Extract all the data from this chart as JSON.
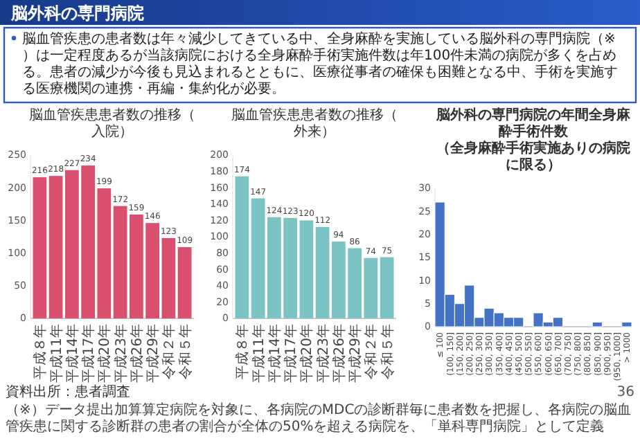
{
  "chart_data": [
    {
      "type": "other",
      "title": "脳外科の専門病院",
      "annotations": [
        "脳血管疾患の患者数は年々減少してきている中、全身麻酔を実施している脳外科の専門病院（※）は一定程度あるが当該病院における全身麻酔手術実施件数は年100件未満の病院が多くを占める。患者の減少が今後も見込まれるとともに、医療従事者の確保も困難となる中、手術を実施する医療機関の連携・再編・集約化が必要。",
        "資料出所：患者調査",
        "（※）データ提出加算算定病院を対象に、各病院のMDCの診断群毎に患者数を把握し、各病院の脳血管疾患に関する診断群の患者の割合が全体の50%を超える病院を、「単科専門病院」として定義",
        "36"
      ]
    },
    {
      "type": "bar",
      "title": "脳血管疾患患者数の推移（入院）",
      "categories": [
        "平成８年",
        "平成11年",
        "平成14年",
        "平成17年",
        "平成20年",
        "平成23年",
        "平成26年",
        "平成29年",
        "令和２年",
        "令和５年"
      ],
      "values": [
        216,
        218,
        227,
        234,
        199,
        172,
        159,
        146,
        123,
        109
      ],
      "color": "#d94f6e",
      "ylim": [
        0,
        250
      ],
      "yticks": [
        0,
        50,
        100,
        150,
        200,
        250
      ],
      "data_labels": true
    },
    {
      "type": "bar",
      "title": "脳血管疾患患者数の推移（外来）",
      "categories": [
        "平成８年",
        "平成11年",
        "平成14年",
        "平成17年",
        "平成20年",
        "平成23年",
        "平成26年",
        "平成29年",
        "令和２年",
        "令和５年"
      ],
      "values": [
        174,
        147,
        124,
        123,
        120,
        112,
        94,
        86,
        74,
        75
      ],
      "color": "#7cc4c4",
      "ylim": [
        0,
        200
      ],
      "yticks": [
        0,
        20,
        40,
        60,
        80,
        100,
        120,
        140,
        160,
        180,
        200
      ],
      "data_labels": true
    },
    {
      "type": "bar",
      "title": "脳外科の専門病院の年間全身麻酔手術件数",
      "subtitle": "（全身麻酔手術実施ありの病院に限る）",
      "categories": [
        "≤ 100",
        "(100, 150]",
        "(150, 200]",
        "(200, 250]",
        "(250, 300]",
        "(300, 350]",
        "(350, 400]",
        "(400, 450]",
        "(450, 500]",
        "(500, 550]",
        "(550, 600]",
        "(600, 650]",
        "(650, 700]",
        "(700, 750]",
        "(750, 800]",
        "(800, 850]",
        "(850, 900]",
        "(900, 950]",
        "(950, 1000]",
        "> 1000"
      ],
      "values": [
        27,
        7,
        5,
        9,
        2,
        4,
        3,
        2,
        2,
        0,
        3,
        1,
        2,
        0,
        0,
        0,
        1,
        0,
        0,
        1
      ],
      "color": "#4472c4",
      "ylim": [
        0,
        30
      ],
      "yticks": [
        0,
        5,
        10,
        15,
        20,
        25,
        30
      ]
    }
  ]
}
